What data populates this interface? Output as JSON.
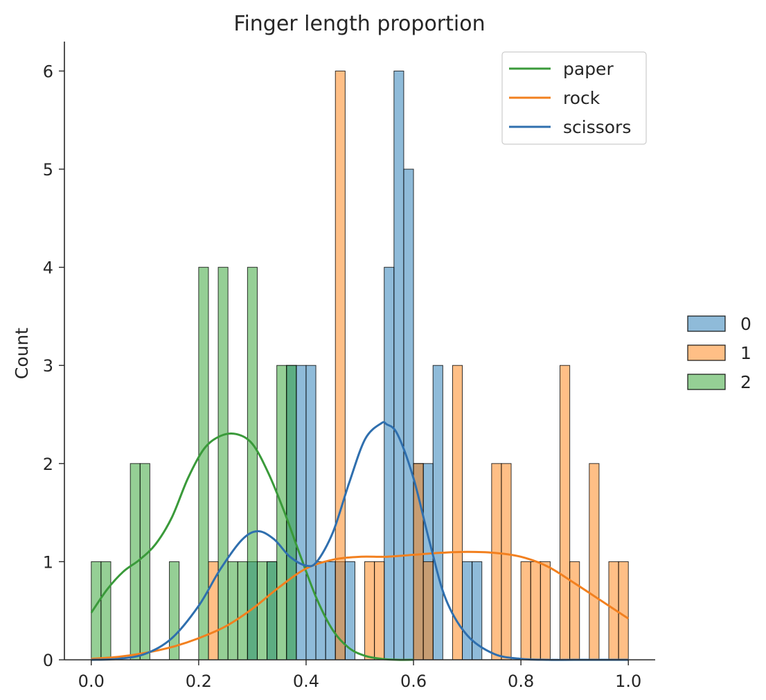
{
  "chart_data": {
    "type": "bar",
    "title": "Finger length proportion",
    "xlabel": "",
    "ylabel": "Count",
    "xlim": [
      -0.05,
      1.05
    ],
    "ylim": [
      0,
      6.3
    ],
    "xticks": [
      0.0,
      0.2,
      0.4,
      0.6,
      0.8,
      1.0
    ],
    "xtick_labels": [
      "0.0",
      "0.2",
      "0.4",
      "0.6",
      "0.8",
      "1.0"
    ],
    "yticks": [
      0,
      1,
      2,
      3,
      4,
      5,
      6
    ],
    "ytick_labels": [
      "0",
      "1",
      "2",
      "3",
      "4",
      "5",
      "6"
    ],
    "bins": 55,
    "bin_range": [
      0.0,
      1.0
    ],
    "grid": false,
    "series": [
      {
        "name": "0",
        "color": "#1f77b4",
        "counts": [
          0,
          0,
          0,
          0,
          0,
          0,
          0,
          0,
          0,
          0,
          0,
          0,
          0,
          0,
          0,
          0,
          1,
          0,
          1,
          0,
          3,
          3,
          3,
          1,
          1,
          1,
          1,
          0,
          0,
          0,
          4,
          6,
          5,
          2,
          2,
          3,
          0,
          0,
          1,
          1,
          0,
          0,
          0,
          0,
          0,
          0,
          0,
          0,
          0,
          0,
          0,
          0,
          0,
          0,
          0
        ]
      },
      {
        "name": "1",
        "color": "#ff7f0e",
        "counts": [
          0,
          0,
          0,
          0,
          0,
          0,
          0,
          0,
          0,
          0,
          0,
          0,
          1,
          0,
          0,
          0,
          0,
          0,
          0,
          0,
          0,
          0,
          0,
          0,
          0,
          6,
          0,
          0,
          1,
          1,
          0,
          0,
          0,
          2,
          1,
          0,
          0,
          3,
          0,
          0,
          0,
          2,
          2,
          0,
          1,
          1,
          1,
          0,
          3,
          1,
          0,
          2,
          0,
          1,
          1
        ]
      },
      {
        "name": "2",
        "color": "#2ca02c",
        "counts": [
          1,
          1,
          0,
          0,
          2,
          2,
          0,
          0,
          1,
          0,
          0,
          4,
          0,
          4,
          1,
          1,
          4,
          1,
          1,
          3,
          3,
          0,
          0,
          0,
          0,
          0,
          0,
          0,
          0,
          0,
          0,
          0,
          0,
          0,
          0,
          0,
          0,
          0,
          0,
          0,
          0,
          0,
          0,
          0,
          0,
          0,
          0,
          0,
          0,
          0,
          0,
          0,
          0,
          0,
          0
        ]
      }
    ],
    "kde": [
      {
        "name": "paper",
        "color": "#3a9a3a",
        "x": [
          0.0,
          0.03,
          0.06,
          0.09,
          0.12,
          0.15,
          0.18,
          0.21,
          0.24,
          0.27,
          0.3,
          0.33,
          0.36,
          0.39,
          0.42,
          0.45,
          0.48,
          0.51,
          0.54,
          0.57,
          0.6
        ],
        "y": [
          0.48,
          0.72,
          0.9,
          1.02,
          1.18,
          1.45,
          1.85,
          2.15,
          2.28,
          2.3,
          2.2,
          1.9,
          1.5,
          1.05,
          0.62,
          0.3,
          0.12,
          0.04,
          0.01,
          0.0,
          0.0
        ]
      },
      {
        "name": "rock",
        "color": "#f2801f",
        "x": [
          0.0,
          0.05,
          0.1,
          0.15,
          0.2,
          0.25,
          0.3,
          0.35,
          0.4,
          0.45,
          0.5,
          0.55,
          0.6,
          0.65,
          0.7,
          0.75,
          0.8,
          0.85,
          0.9,
          0.95,
          1.0
        ],
        "y": [
          0.01,
          0.03,
          0.07,
          0.13,
          0.22,
          0.34,
          0.52,
          0.74,
          0.93,
          1.02,
          1.05,
          1.05,
          1.07,
          1.09,
          1.1,
          1.09,
          1.05,
          0.95,
          0.78,
          0.6,
          0.42
        ]
      },
      {
        "name": "scissors",
        "color": "#2f6fae",
        "x": [
          0.0,
          0.05,
          0.1,
          0.15,
          0.2,
          0.24,
          0.28,
          0.31,
          0.34,
          0.37,
          0.4,
          0.42,
          0.45,
          0.48,
          0.51,
          0.54,
          0.55,
          0.57,
          0.6,
          0.63,
          0.66,
          0.7,
          0.75,
          0.8,
          0.85,
          0.9,
          1.0
        ],
        "y": [
          0.0,
          0.01,
          0.06,
          0.22,
          0.55,
          0.92,
          1.22,
          1.31,
          1.23,
          1.05,
          0.96,
          1.0,
          1.3,
          1.8,
          2.25,
          2.41,
          2.4,
          2.3,
          1.85,
          1.2,
          0.62,
          0.25,
          0.06,
          0.01,
          0.0,
          0.0,
          0.0
        ]
      }
    ],
    "legend_lines": {
      "placement": "top-right",
      "entries": [
        "paper",
        "rock",
        "scissors"
      ]
    },
    "legend_hue": {
      "placement": "right-outside",
      "entries": [
        "0",
        "1",
        "2"
      ]
    }
  }
}
